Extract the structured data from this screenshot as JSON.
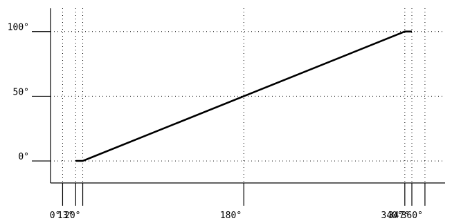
{
  "chart_data": {
    "type": "line",
    "title": "",
    "xlabel": "",
    "ylabel": "",
    "x_ticks": [
      {
        "value": 0,
        "label": "0°"
      },
      {
        "value": 13,
        "label": "13°"
      },
      {
        "value": 20,
        "label": "20°"
      },
      {
        "value": 180,
        "label": "180°"
      },
      {
        "value": 340,
        "label": "340°"
      },
      {
        "value": 347,
        "label": "347°"
      },
      {
        "value": 360,
        "label": "360°"
      }
    ],
    "y_ticks": [
      {
        "value": 0,
        "label": "0°"
      },
      {
        "value": 50,
        "label": "50°"
      },
      {
        "value": 100,
        "label": "100°"
      }
    ],
    "xlim": [
      -12,
      380
    ],
    "ylim": [
      -17,
      118
    ],
    "grid": true,
    "series": [
      {
        "x": [
          13,
          20,
          340,
          347
        ],
        "y": [
          0,
          0,
          100,
          100
        ],
        "color": "#000000"
      }
    ]
  }
}
